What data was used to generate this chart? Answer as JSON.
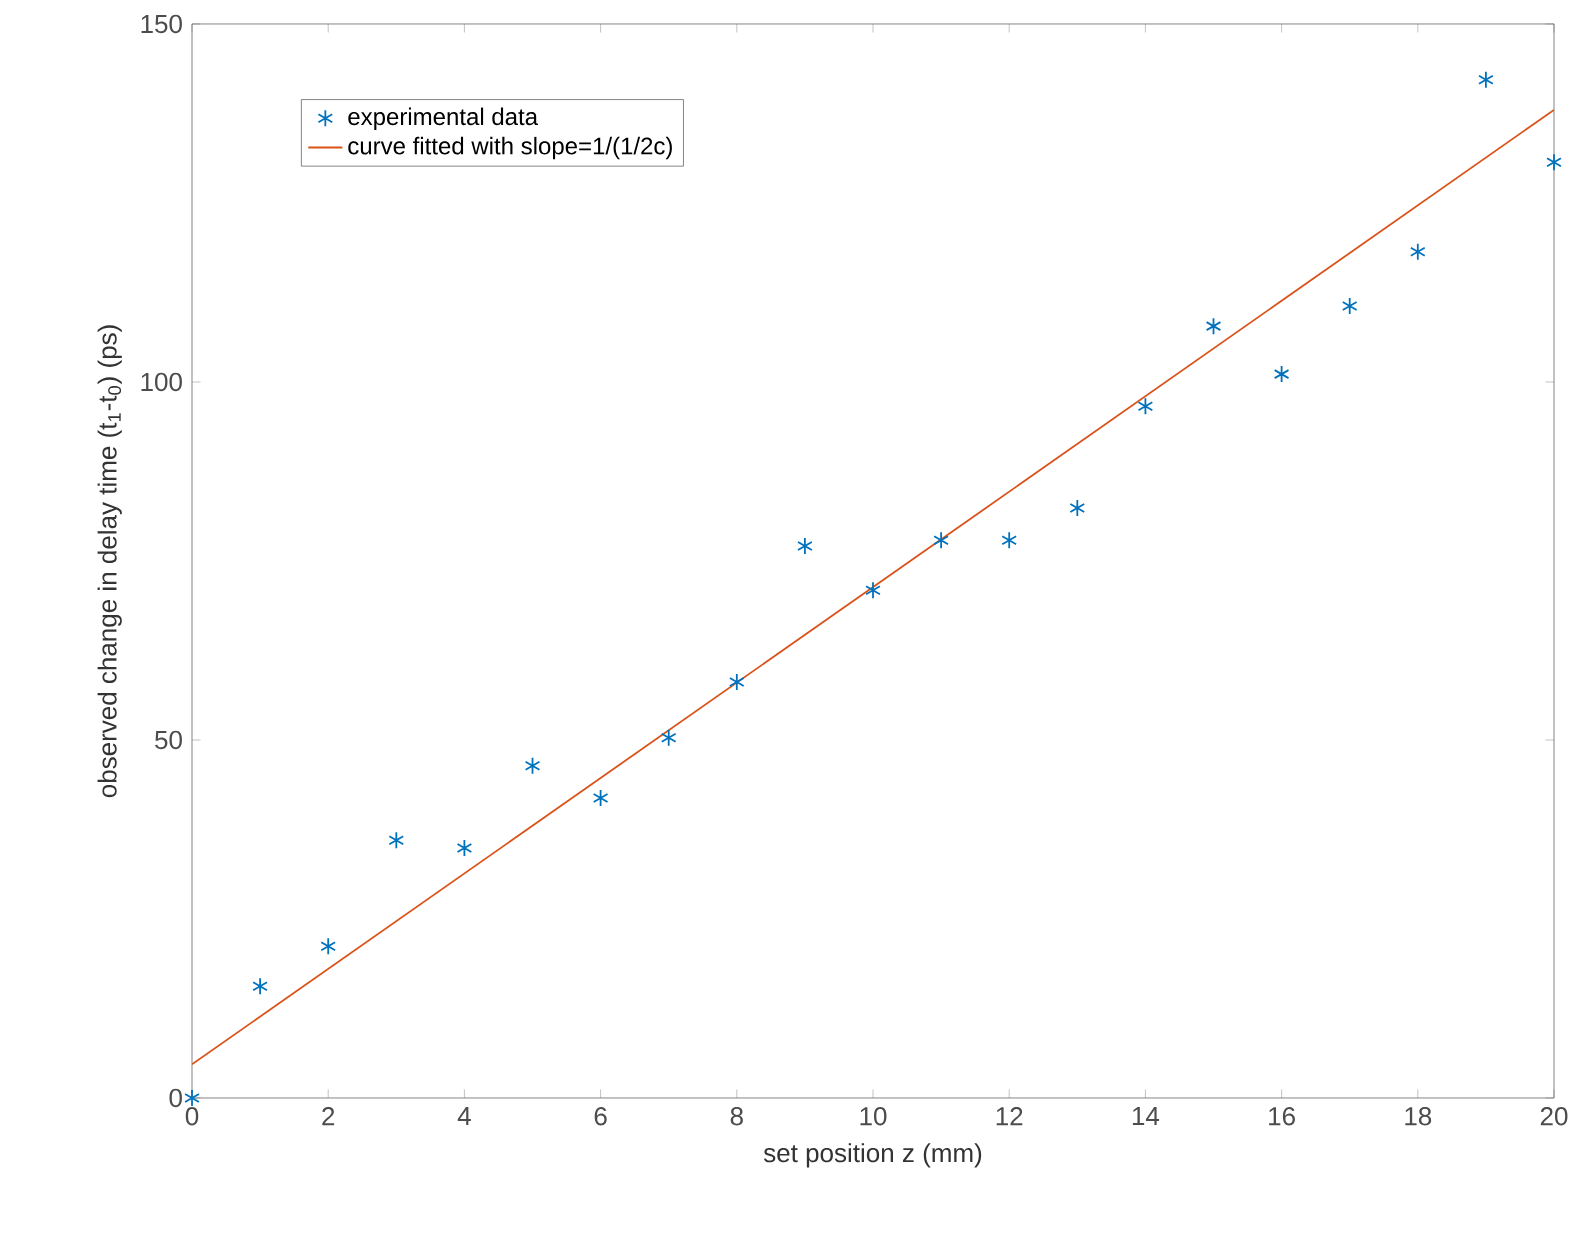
{
  "chart_data": {
    "type": "scatter",
    "xlabel": "set position z (mm)",
    "ylabel": "observed change in delay time (t$_{1}$-t$_{0}$) (ps)",
    "xlim": [
      0,
      20
    ],
    "ylim": [
      0,
      150
    ],
    "xticks": [
      0,
      2,
      4,
      6,
      8,
      10,
      12,
      14,
      16,
      18,
      20
    ],
    "yticks": [
      0,
      50,
      100,
      150
    ],
    "legend": "top left",
    "grid": false,
    "series": [
      {
        "name": "experimental data",
        "marker": "cross",
        "color": "#0072bd",
        "x": [
          0,
          1,
          2,
          3,
          4,
          5,
          6,
          7,
          8,
          9,
          10,
          11,
          12,
          13,
          14,
          15,
          16,
          17,
          18,
          19,
          20
        ],
        "values": [
          0,
          15.6,
          21.2,
          36.0,
          34.9,
          46.4,
          41.9,
          50.3,
          58.1,
          77.1,
          70.9,
          77.9,
          77.9,
          82.4,
          96.6,
          107.8,
          101.1,
          110.6,
          118.2,
          142.2,
          130.7
        ]
      },
      {
        "name": "curve fitted with slope=1/(1/2c)",
        "type": "line",
        "line_style": "solid",
        "color": "#d95319",
        "x": [
          0,
          20
        ],
        "values": [
          4.7,
          138.0
        ]
      }
    ]
  }
}
